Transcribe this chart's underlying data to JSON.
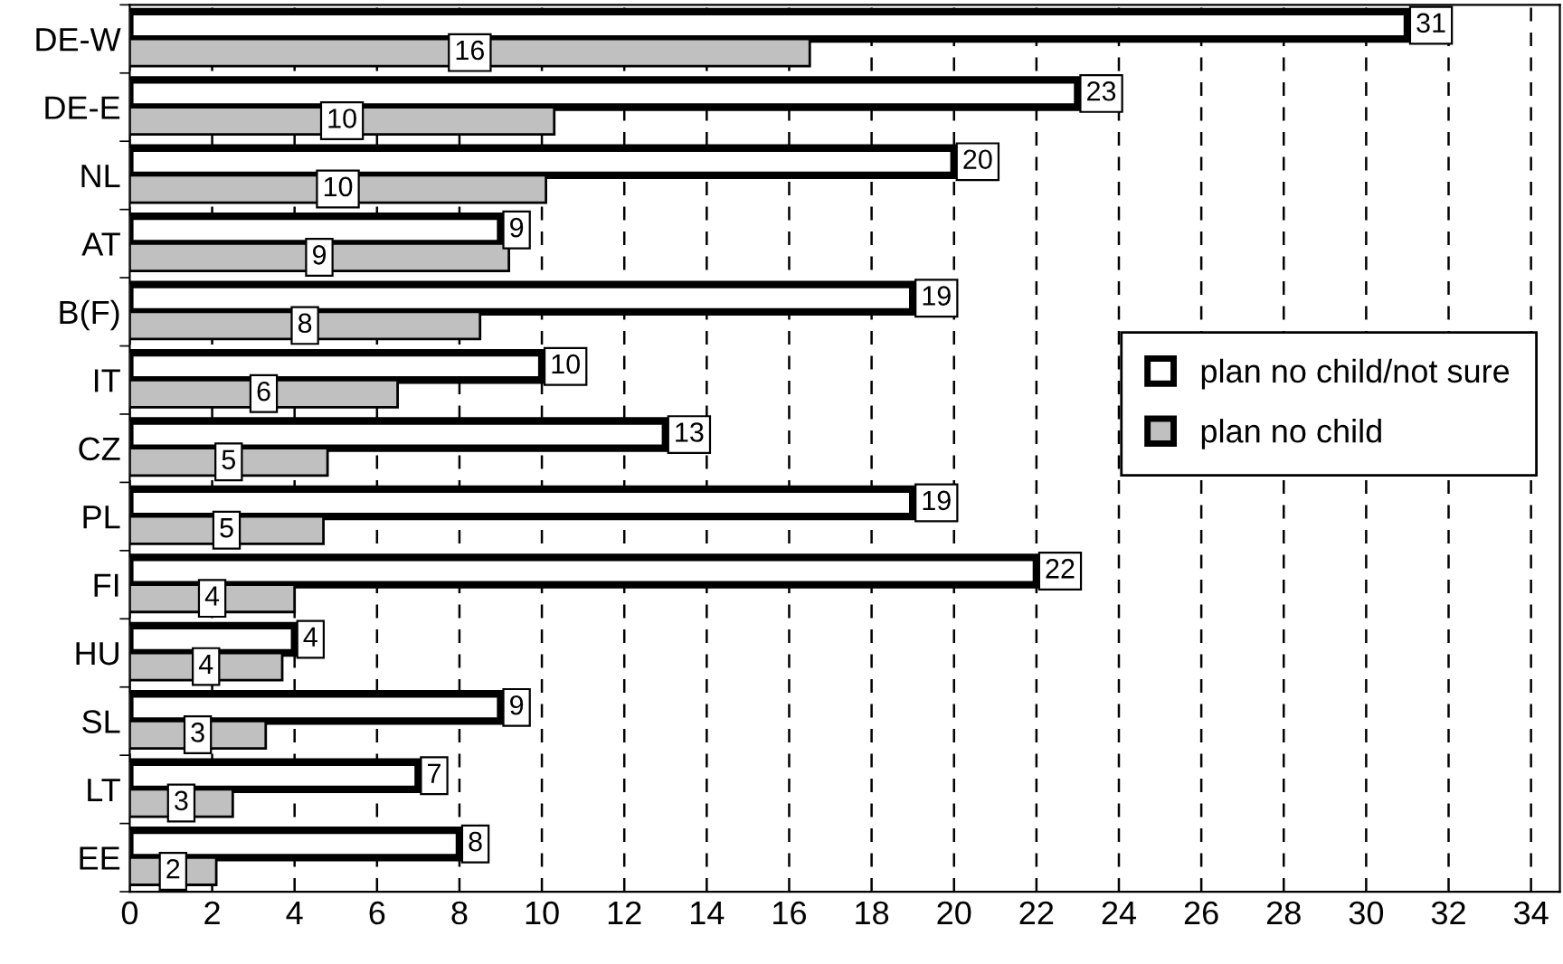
{
  "chart_data": {
    "type": "bar",
    "orientation": "horizontal",
    "categories": [
      "DE-W",
      "DE-E",
      "NL",
      "AT",
      "B(F)",
      "IT",
      "CZ",
      "PL",
      "FI",
      "HU",
      "SL",
      "LT",
      "EE"
    ],
    "series": [
      {
        "name": "plan no child/not sure",
        "color": "#ffffff",
        "values": [
          31,
          23,
          20,
          9,
          19,
          10,
          13,
          19,
          22,
          4,
          9,
          7,
          8
        ],
        "value_labels": [
          "31",
          "23",
          "20",
          "9",
          "19",
          "10",
          "13",
          "19",
          "22",
          "4",
          "9",
          "7",
          "8"
        ]
      },
      {
        "name": "plan no child",
        "color": "#c0c0c0",
        "values": [
          16.5,
          10.3,
          10.1,
          9.2,
          8.5,
          6.5,
          4.8,
          4.7,
          4.0,
          3.7,
          3.3,
          2.5,
          2.1
        ],
        "value_labels": [
          "16",
          "10",
          "10",
          "9",
          "8",
          "6",
          "5",
          "5",
          "4",
          "4",
          "3",
          "3",
          "2"
        ]
      }
    ],
    "xlim": [
      0,
      34.7
    ],
    "xticks": [
      0,
      2,
      4,
      6,
      8,
      10,
      12,
      14,
      16,
      18,
      20,
      22,
      24,
      26,
      28,
      30,
      32,
      34
    ],
    "grid": "x",
    "legend": "right"
  }
}
